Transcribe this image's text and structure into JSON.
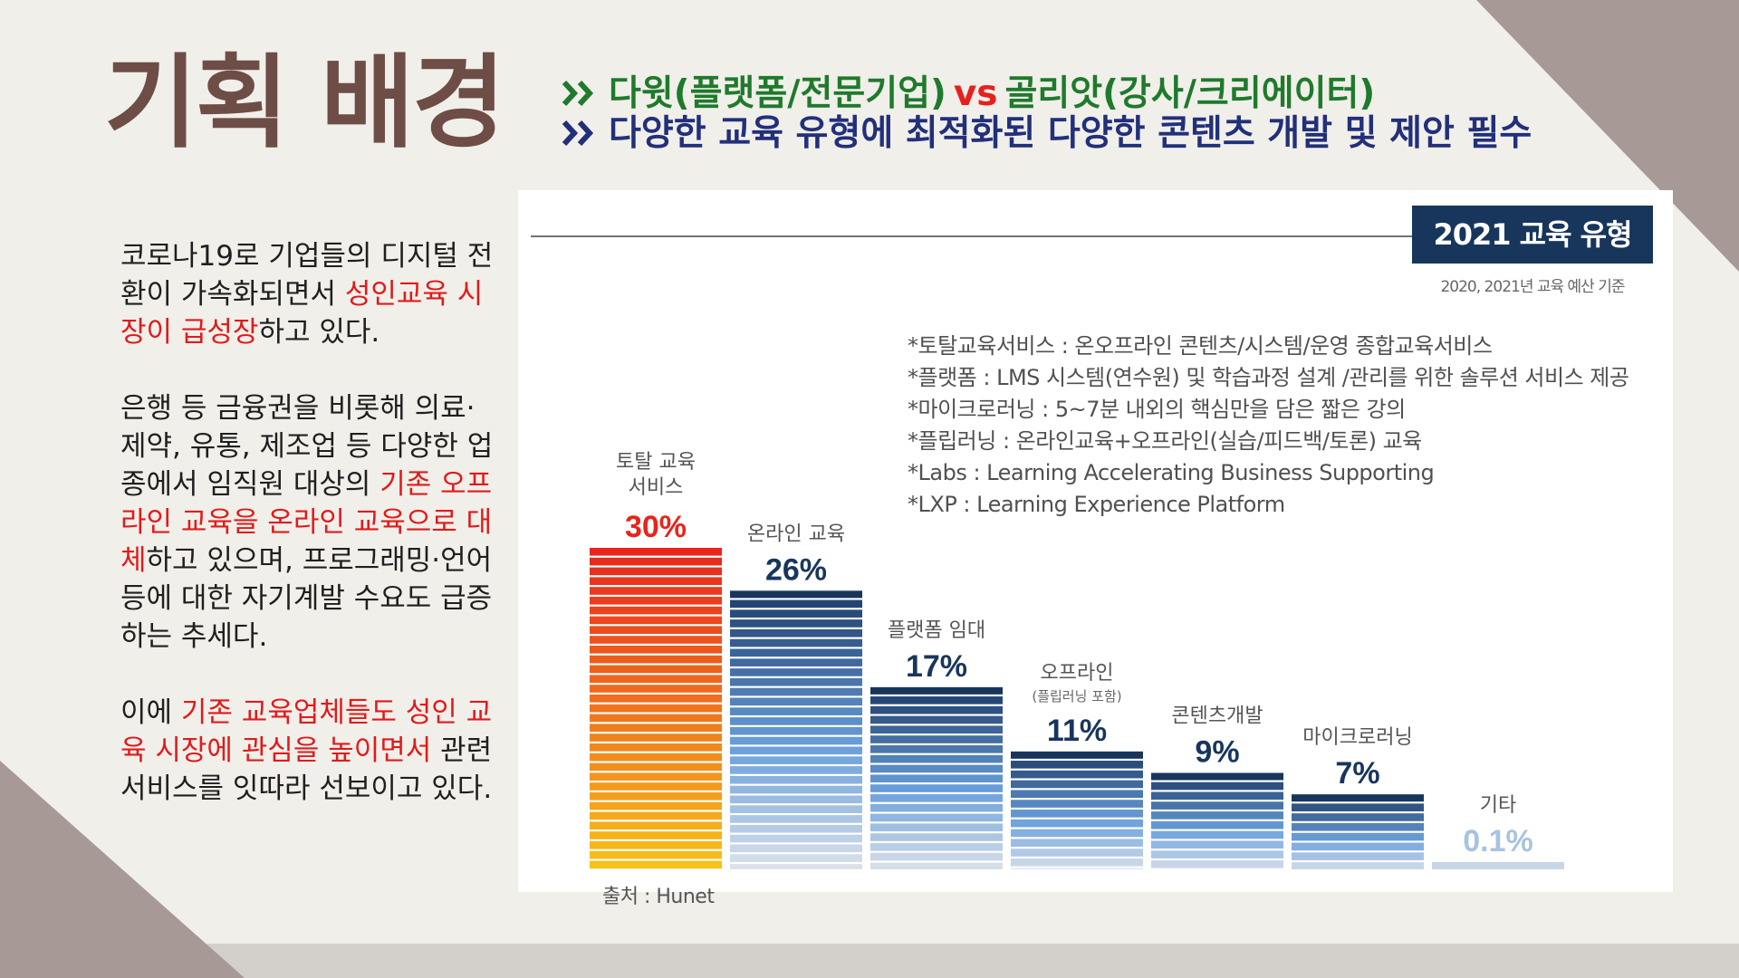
{
  "header": {
    "title": "기획 배경",
    "line1_part1": "다윗(플랫폼/전문기업)",
    "line1_vs": "vs",
    "line1_part2": "골리앗(강사/크리에이터)",
    "line2": "다양한 교육 유형에 최적화된 다양한 콘텐츠 개발 및 제안 필수"
  },
  "body": {
    "p1": [
      "코로나19로 기업들의 디지털 전환이 가속화되면서 ",
      "성인교육 시장이 급성장",
      "하고 있다."
    ],
    "p2": [
      "은행 등 금융권을 비롯해 의료·제약, 유통, 제조업 등 다양한 업종에서 임직원 대상의 ",
      "기존 오프라인 교육을 온라인 교육으로 대체",
      "하고 있으며, 프로그래밍·언어 등에 대한 자기계발 수요도 급증하는 추세다."
    ],
    "p3": [
      "이에 ",
      "기존 교육업체들도 성인 교육 시장에 관심을 높이면서",
      " 관련 서비스를 잇따라 선보이고 있다."
    ]
  },
  "chart": {
    "badge": "2021 교육 유형",
    "budget_note": "2020, 2021년 교육 예산 기준",
    "notes": [
      "*토탈교육서비스 : 온오프라인 콘텐츠/시스템/운영 종합교육서비스",
      "*플랫폼 : LMS 시스템(연수원) 및  학습과정 설계 /관리를 위한 솔루션 서비스 제공",
      "*마이크로러닝 : 5~7분 내외의 핵심만을 담은 짧은 강의",
      "*플립러닝 : 온라인교육+오프라인(실습/피드백/토론) 교육",
      "*Labs : Learning Accelerating Business Supporting",
      "*LXP : Learning Experience Platform"
    ],
    "source": "출처 : Hunet"
  },
  "chart_data": {
    "type": "bar",
    "title": "2021 교육 유형",
    "categories": [
      "토탈 교육 서비스",
      "온라인 교육",
      "플랫폼 임대",
      "오프라인",
      "콘텐츠개발",
      "마이크로러닝",
      "기타"
    ],
    "sublabels": [
      "",
      "",
      "",
      "(플립러닝 포함)",
      "",
      "",
      ""
    ],
    "values": [
      30,
      26,
      17,
      11,
      9,
      7,
      0.1
    ],
    "value_labels": [
      "30%",
      "26%",
      "17%",
      "11%",
      "9%",
      "7%",
      "0.1%"
    ],
    "unit": "%",
    "ylim": [
      0,
      30
    ],
    "grid": false,
    "legend": "none"
  },
  "colors": {
    "title": "#6e4d47",
    "line1": "#1f7a2c",
    "line2": "#22307a",
    "vs": "#e8201c",
    "highlight": "#e01b1b",
    "navy": "#18365c",
    "first_label": "#e8241c",
    "last_label": "#a8c3de"
  }
}
